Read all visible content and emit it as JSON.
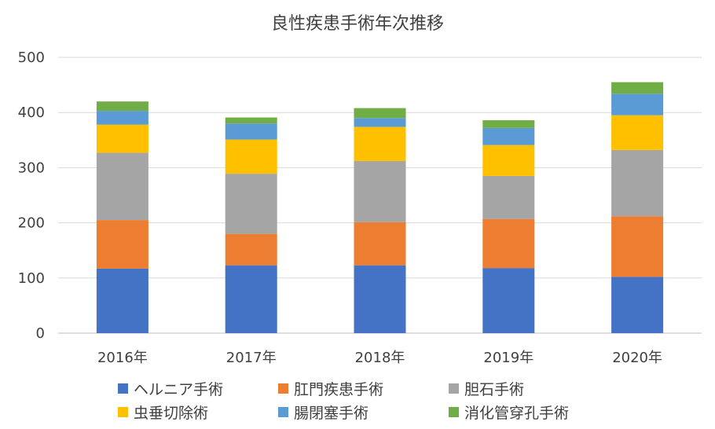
{
  "chart_data": {
    "type": "bar",
    "stacked": true,
    "title": "良性疾患手術年次推移",
    "xlabel": "",
    "ylabel": "",
    "categories": [
      "2016年",
      "2017年",
      "2018年",
      "2019年",
      "2020年"
    ],
    "ylim": [
      0,
      500
    ],
    "yticks": [
      0,
      100,
      200,
      300,
      400,
      500
    ],
    "grid": true,
    "legend_position": "bottom",
    "series": [
      {
        "name": "ヘルニア手術",
        "color": "#4472C4",
        "values": [
          117,
          123,
          123,
          118,
          102
        ]
      },
      {
        "name": "肛門疾患手術",
        "color": "#ED7D31",
        "values": [
          88,
          57,
          78,
          89,
          110
        ]
      },
      {
        "name": "胆石手術",
        "color": "#A5A5A5",
        "values": [
          122,
          109,
          111,
          78,
          120
        ]
      },
      {
        "name": "虫垂切除術",
        "color": "#FFC000",
        "values": [
          51,
          62,
          62,
          56,
          63
        ]
      },
      {
        "name": "腸閉塞手術",
        "color": "#5B9BD5",
        "values": [
          25,
          29,
          16,
          31,
          39
        ]
      },
      {
        "name": "消化管穿孔手術",
        "color": "#70AD47",
        "values": [
          17,
          11,
          18,
          14,
          21
        ]
      }
    ]
  }
}
